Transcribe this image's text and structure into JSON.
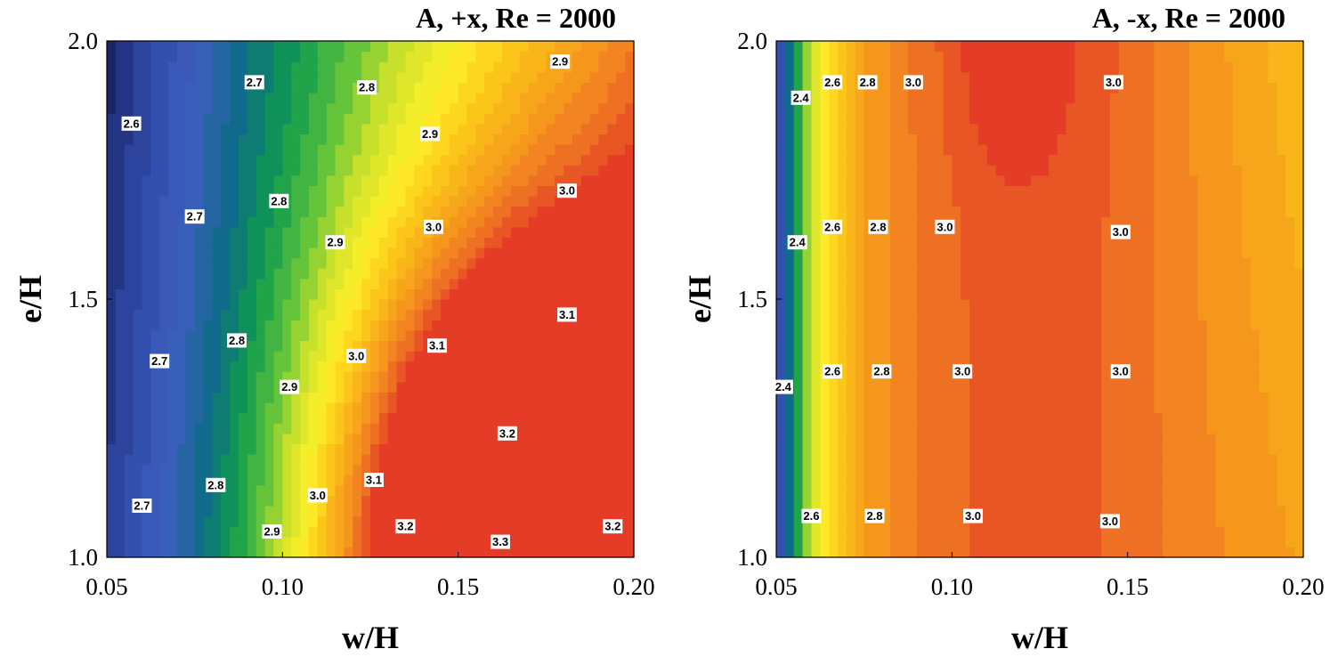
{
  "chart_data": [
    {
      "type": "heatmap",
      "subtype": "filled-contour",
      "title": "A, +x, Re = 2000",
      "xlabel": "w/H",
      "ylabel": "e/H",
      "xlim": [
        0.05,
        0.2
      ],
      "ylim": [
        1.0,
        2.0
      ],
      "xticks": [
        "0.05",
        "0.10",
        "0.15",
        "0.20"
      ],
      "yticks": [
        "1.0",
        "1.5",
        "2.0"
      ],
      "grid": false,
      "colorscale": [
        "#1a2466",
        "#2f4aa8",
        "#3f5fbf",
        "#0e6a8a",
        "#0f9a4e",
        "#5cc23a",
        "#cfe22a",
        "#fff02a",
        "#fbc619",
        "#f7a21b",
        "#f07a23",
        "#e43c26"
      ],
      "vrange": [
        2.5,
        3.35
      ],
      "contour_labels": [
        {
          "text": "2.6",
          "x": 0.057,
          "y": 1.84
        },
        {
          "text": "2.7",
          "x": 0.092,
          "y": 1.92
        },
        {
          "text": "2.8",
          "x": 0.124,
          "y": 1.91
        },
        {
          "text": "2.9",
          "x": 0.179,
          "y": 1.96
        },
        {
          "text": "2.9",
          "x": 0.142,
          "y": 1.82
        },
        {
          "text": "2.7",
          "x": 0.075,
          "y": 1.66
        },
        {
          "text": "2.8",
          "x": 0.099,
          "y": 1.69
        },
        {
          "text": "3.0",
          "x": 0.181,
          "y": 1.71
        },
        {
          "text": "3.0",
          "x": 0.143,
          "y": 1.64
        },
        {
          "text": "2.9",
          "x": 0.115,
          "y": 1.61
        },
        {
          "text": "3.1",
          "x": 0.181,
          "y": 1.47
        },
        {
          "text": "2.8",
          "x": 0.087,
          "y": 1.42
        },
        {
          "text": "3.1",
          "x": 0.144,
          "y": 1.41
        },
        {
          "text": "2.7",
          "x": 0.065,
          "y": 1.38
        },
        {
          "text": "3.0",
          "x": 0.121,
          "y": 1.39
        },
        {
          "text": "2.9",
          "x": 0.102,
          "y": 1.33
        },
        {
          "text": "3.2",
          "x": 0.164,
          "y": 1.24
        },
        {
          "text": "3.1",
          "x": 0.126,
          "y": 1.15
        },
        {
          "text": "2.8",
          "x": 0.081,
          "y": 1.14
        },
        {
          "text": "3.0",
          "x": 0.11,
          "y": 1.12
        },
        {
          "text": "2.7",
          "x": 0.06,
          "y": 1.1
        },
        {
          "text": "3.2",
          "x": 0.135,
          "y": 1.06
        },
        {
          "text": "2.9",
          "x": 0.097,
          "y": 1.05
        },
        {
          "text": "3.2",
          "x": 0.194,
          "y": 1.06
        },
        {
          "text": "3.3",
          "x": 0.162,
          "y": 1.03
        }
      ]
    },
    {
      "type": "heatmap",
      "subtype": "filled-contour",
      "title": "A, -x, Re = 2000",
      "xlabel": "w/H",
      "ylabel": "e/H",
      "xlim": [
        0.05,
        0.2
      ],
      "ylim": [
        1.0,
        2.0
      ],
      "xticks": [
        "0.05",
        "0.10",
        "0.15",
        "0.20"
      ],
      "yticks": [
        "1.0",
        "1.5",
        "2.0"
      ],
      "grid": false,
      "colorscale": [
        "#1a2466",
        "#2f4aa8",
        "#3f5fbf",
        "#0e6a8a",
        "#0f9a4e",
        "#5cc23a",
        "#cfe22a",
        "#fff02a",
        "#fbc619",
        "#f7a21b",
        "#f07a23",
        "#e43c26"
      ],
      "vrange": [
        2.3,
        3.08
      ],
      "contour_labels": [
        {
          "text": "2.4",
          "x": 0.057,
          "y": 1.89
        },
        {
          "text": "2.6",
          "x": 0.066,
          "y": 1.92
        },
        {
          "text": "2.8",
          "x": 0.076,
          "y": 1.92
        },
        {
          "text": "3.0",
          "x": 0.089,
          "y": 1.92
        },
        {
          "text": "3.0",
          "x": 0.146,
          "y": 1.92
        },
        {
          "text": "2.4",
          "x": 0.056,
          "y": 1.61
        },
        {
          "text": "2.6",
          "x": 0.066,
          "y": 1.64
        },
        {
          "text": "2.8",
          "x": 0.079,
          "y": 1.64
        },
        {
          "text": "3.0",
          "x": 0.098,
          "y": 1.64
        },
        {
          "text": "3.0",
          "x": 0.148,
          "y": 1.63
        },
        {
          "text": "2.4",
          "x": 0.052,
          "y": 1.33
        },
        {
          "text": "2.6",
          "x": 0.066,
          "y": 1.36
        },
        {
          "text": "2.8",
          "x": 0.08,
          "y": 1.36
        },
        {
          "text": "3.0",
          "x": 0.103,
          "y": 1.36
        },
        {
          "text": "3.0",
          "x": 0.148,
          "y": 1.36
        },
        {
          "text": "2.6",
          "x": 0.06,
          "y": 1.08
        },
        {
          "text": "2.8",
          "x": 0.078,
          "y": 1.08
        },
        {
          "text": "3.0",
          "x": 0.106,
          "y": 1.08
        },
        {
          "text": "3.0",
          "x": 0.145,
          "y": 1.07
        }
      ]
    }
  ]
}
